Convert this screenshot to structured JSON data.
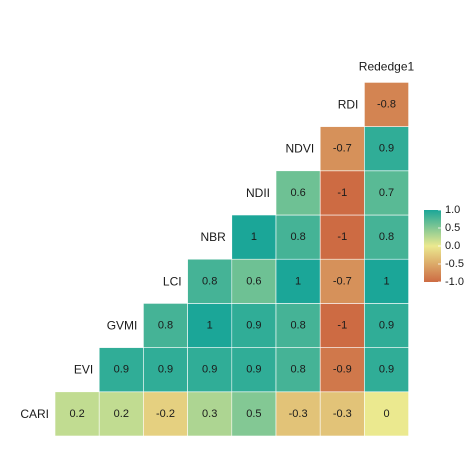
{
  "chart_data": {
    "type": "heatmap",
    "variables": [
      "CARI",
      "EVI",
      "GVMI",
      "LCI",
      "NBR",
      "NDII",
      "NDVI",
      "RDI",
      "Rededge1"
    ],
    "matrix_lower": [
      [
        0.2
      ],
      [
        0.2,
        0.9
      ],
      [
        -0.2,
        0.9,
        0.8
      ],
      [
        0.3,
        0.9,
        1,
        0.8
      ],
      [
        0.5,
        0.9,
        0.9,
        0.6,
        1
      ],
      [
        -0.3,
        0.8,
        0.8,
        1,
        0.8,
        0.6
      ],
      [
        -0.3,
        -0.9,
        -1,
        -0.7,
        -1,
        -1,
        -0.7
      ],
      [
        0,
        0.9,
        0.9,
        1,
        0.8,
        0.7,
        0.9,
        -0.8
      ]
    ],
    "legend": {
      "ticks": [
        "1.0",
        "0.5",
        "0.0",
        "-0.5",
        "-1.0"
      ],
      "tick_values": [
        1,
        0.5,
        0,
        -0.5,
        -1
      ],
      "range": [
        -1,
        1
      ],
      "placement": "right"
    },
    "colors": {
      "neg": "#cd6b43",
      "mid": "#ebe98f",
      "pos": "#1ba698"
    },
    "grid": false
  }
}
